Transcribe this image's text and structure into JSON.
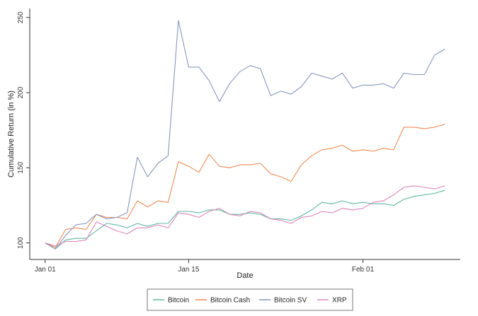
{
  "chart_data": {
    "type": "line",
    "title": "",
    "xlabel": "Date",
    "ylabel": "Cumulative Return (in %)",
    "x_ticks": [
      {
        "label": "Jan 01",
        "day": 0
      },
      {
        "label": "Jan 15",
        "day": 14
      },
      {
        "label": "Feb 01",
        "day": 31
      }
    ],
    "y_ticks": [
      100,
      150,
      200,
      250
    ],
    "xlim": [
      -1.5,
      40.5
    ],
    "ylim": [
      89,
      256
    ],
    "grid": false,
    "legend_position": "bottom",
    "days": [
      0,
      1,
      2,
      3,
      4,
      5,
      6,
      7,
      8,
      9,
      10,
      11,
      12,
      13,
      14,
      15,
      16,
      17,
      18,
      19,
      20,
      21,
      22,
      23,
      24,
      25,
      26,
      27,
      28,
      29,
      30,
      31,
      32,
      33,
      34,
      35,
      36,
      37,
      38,
      39
    ],
    "series": [
      {
        "name": "Bitcoin",
        "color": "#5fb8a0",
        "values": [
          100,
          96,
          102,
          103,
          103,
          108,
          113,
          112,
          110,
          113,
          111,
          113,
          113,
          121,
          121,
          120,
          122,
          122,
          119,
          119,
          120,
          119,
          116,
          116,
          115,
          118,
          122,
          127,
          126,
          128,
          126,
          127,
          126,
          126,
          125,
          129,
          131,
          132,
          133,
          135
        ]
      },
      {
        "name": "Bitcoin Cash",
        "color": "#ed8b54",
        "values": [
          100,
          97,
          109,
          110,
          109,
          119,
          117,
          117,
          116,
          128,
          124,
          128,
          127,
          154,
          151,
          147,
          159,
          151,
          150,
          152,
          152,
          153,
          146,
          144,
          141,
          152,
          158,
          162,
          163,
          165,
          161,
          162,
          161,
          163,
          162,
          177,
          177,
          176,
          177,
          179
        ]
      },
      {
        "name": "Bitcoin SV",
        "color": "#8797c1",
        "values": [
          100,
          96,
          105,
          112,
          113,
          119,
          116,
          117,
          120,
          157,
          144,
          153,
          158,
          248,
          217,
          217,
          208,
          194,
          206,
          214,
          218,
          216,
          198,
          201,
          199,
          204,
          213,
          211,
          209,
          213,
          203,
          205,
          205,
          206,
          203,
          213,
          212,
          212,
          225,
          229
        ]
      },
      {
        "name": "XRP",
        "color": "#dd85bb",
        "values": [
          100,
          98,
          101,
          101,
          102,
          114,
          111,
          108,
          106,
          110,
          110,
          112,
          110,
          120,
          119,
          117,
          121,
          123,
          119,
          118,
          121,
          120,
          116,
          115,
          113,
          117,
          118,
          121,
          120,
          123,
          122,
          123,
          127,
          128,
          132,
          137,
          138,
          137,
          136,
          138
        ]
      }
    ]
  }
}
